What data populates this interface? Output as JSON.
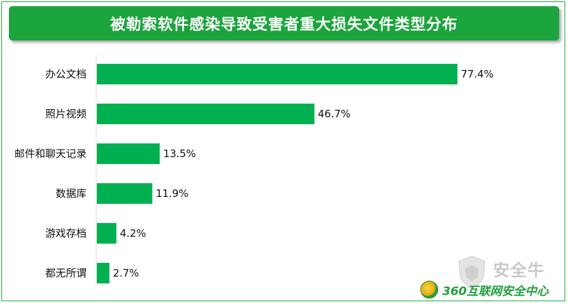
{
  "title": "被勒索软件感染导致受害者重大损失文件类型分布",
  "chart_data": {
    "type": "bar",
    "orientation": "horizontal",
    "title": "被勒索软件感染导致受害者重大损失文件类型分布",
    "categories": [
      "办公文档",
      "照片视频",
      "邮件和聊天记录",
      "数据库",
      "游戏存档",
      "都无所谓"
    ],
    "values": [
      77.4,
      46.7,
      13.5,
      11.9,
      4.2,
      2.7
    ],
    "value_labels": [
      "77.4%",
      "46.7%",
      "13.5%",
      "11.9%",
      "4.2%",
      "2.7%"
    ],
    "xlim": [
      0,
      100
    ],
    "bar_color": "#00b050",
    "grid": false,
    "legend": "none"
  },
  "watermark": {
    "text": "安全牛"
  },
  "footer": {
    "logo_text": "360互联网安全中心"
  },
  "colors": {
    "title_bg": "#1ca43d",
    "bar": "#00b050",
    "border": "#1faa3a"
  }
}
